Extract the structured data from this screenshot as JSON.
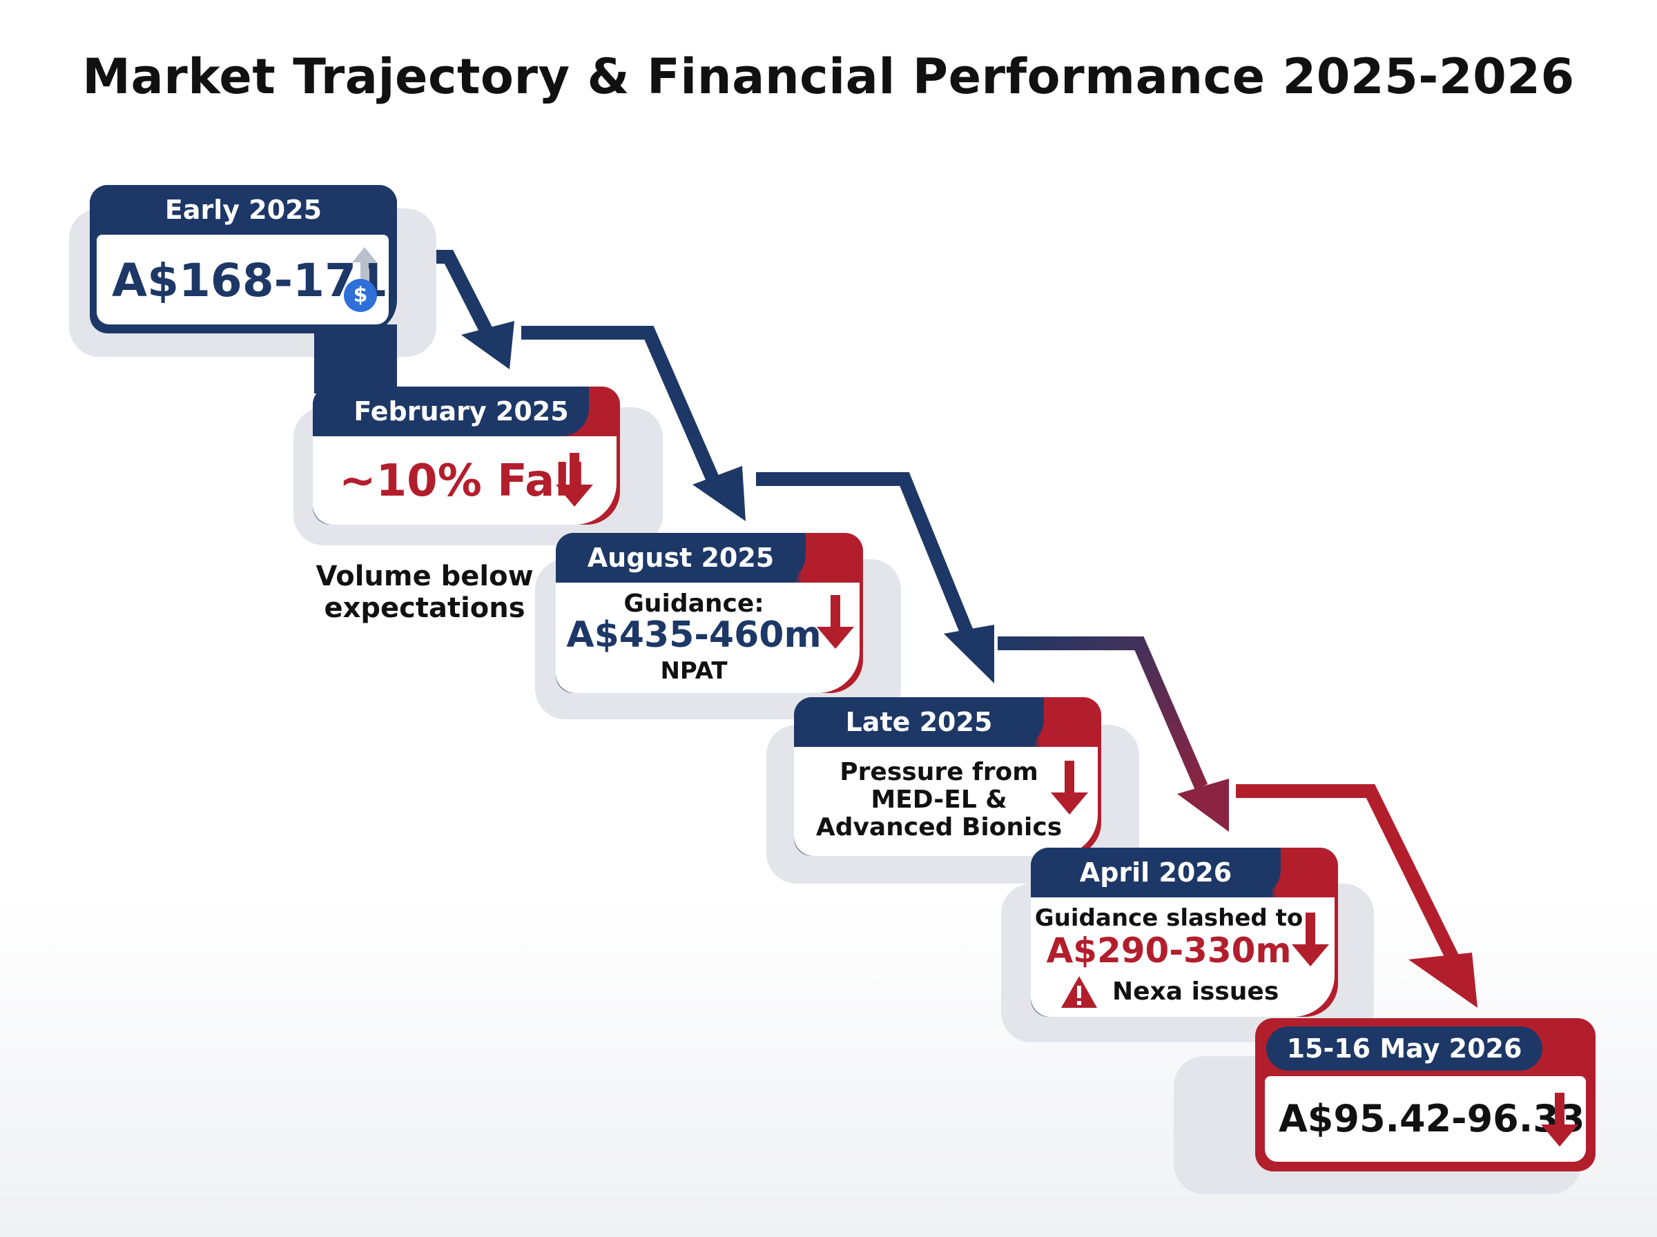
{
  "title": "Market Trajectory & Financial Performance 2025-2026",
  "steps": [
    {
      "period": "Early 2025",
      "value": "A$168-171"
    },
    {
      "period": "February 2025",
      "value": "~10% Fall",
      "note": "Volume below expectations"
    },
    {
      "period": "August 2025",
      "label": "Guidance:",
      "value": "A$435-460m",
      "sub": "NPAT"
    },
    {
      "period": "Late 2025",
      "lines": [
        "Pressure from",
        "MED-EL &",
        "Advanced Bionics"
      ]
    },
    {
      "period": "April 2026",
      "label": "Guidance slashed to",
      "value": "A$290-330m",
      "sub": "Nexa issues"
    },
    {
      "period": "15-16 May 2026",
      "value": "A$95.42-96.33"
    }
  ],
  "icons": {
    "coin_symbol": "$",
    "warning_symbol": "!"
  },
  "colors": {
    "navy": "#1d3866",
    "red": "#b31e2d",
    "up_arrow": "#b9c0cc",
    "coin": "#2f6fd8"
  }
}
